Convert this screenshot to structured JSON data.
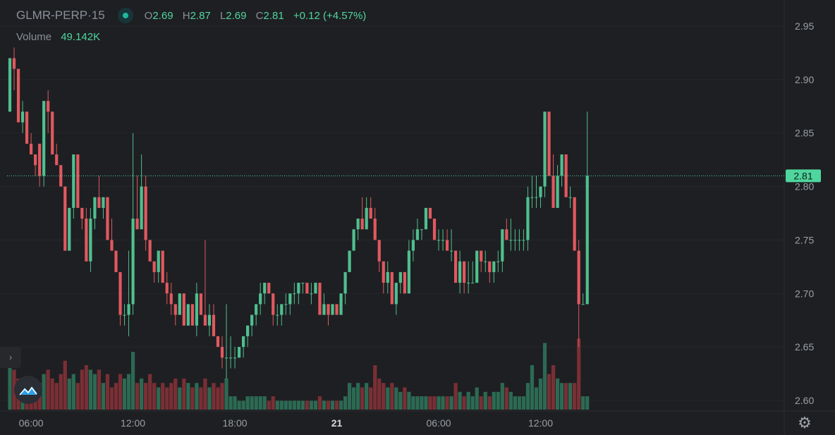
{
  "header": {
    "symbol": "GLMR-PERP",
    "separator": " · ",
    "interval": "15",
    "open_label": "O",
    "open": "2.69",
    "high_label": "H",
    "high": "2.87",
    "low_label": "L",
    "low": "2.69",
    "close_label": "C",
    "close": "2.81",
    "change": "+0.12 (+4.57%)",
    "volume_label": "Volume",
    "volume_value": "49.142K"
  },
  "colors": {
    "background": "#1e1f22",
    "up": "#4fbf8f",
    "down": "#e0595f",
    "vol_up": "#2c6a53",
    "vol_down": "#7a2f35",
    "axis_text": "#9aa0a6",
    "price_tag": "#4fd69e"
  },
  "icons": {
    "sidebar_toggle": "chevron-right-icon",
    "logo": "mountain-logo-icon",
    "settings": "gear-icon"
  },
  "sidebar_toggle_glyph": "›",
  "settings_glyph": "⚙",
  "chart_data": {
    "type": "candlestick",
    "interval_minutes": 15,
    "ylim": [
      2.59,
      2.965
    ],
    "y_ticks": [
      "2.95",
      "2.90",
      "2.85",
      "2.80",
      "2.75",
      "2.70",
      "2.65",
      "2.60"
    ],
    "x_ticks": [
      {
        "label": "06:00",
        "index": 5
      },
      {
        "label": "12:00",
        "index": 29
      },
      {
        "label": "18:00",
        "index": 53
      },
      {
        "label": "21",
        "index": 77
      },
      {
        "label": "06:00",
        "index": 101
      },
      {
        "label": "12:00",
        "index": 125
      }
    ],
    "last_price": "2.81",
    "candles": [
      [
        2.87,
        2.92,
        2.87,
        2.92,
        1.2
      ],
      [
        2.92,
        2.93,
        2.89,
        2.91,
        0.9
      ],
      [
        2.91,
        2.91,
        2.86,
        2.86,
        0.7
      ],
      [
        2.86,
        2.88,
        2.85,
        2.87,
        0.6
      ],
      [
        2.87,
        2.87,
        2.84,
        2.84,
        0.5
      ],
      [
        2.84,
        2.85,
        2.83,
        2.83,
        0.6
      ],
      [
        2.83,
        2.83,
        2.81,
        2.82,
        0.5
      ],
      [
        2.84,
        2.84,
        2.8,
        2.81,
        0.6
      ],
      [
        2.81,
        2.88,
        2.8,
        2.88,
        0.8
      ],
      [
        2.88,
        2.89,
        2.85,
        2.87,
        0.9
      ],
      [
        2.87,
        2.87,
        2.83,
        2.83,
        0.7
      ],
      [
        2.83,
        2.84,
        2.82,
        2.82,
        0.6
      ],
      [
        2.82,
        2.82,
        2.8,
        2.8,
        0.8
      ],
      [
        2.8,
        2.8,
        2.74,
        2.74,
        1.1
      ],
      [
        2.74,
        2.78,
        2.74,
        2.78,
        0.7
      ],
      [
        2.78,
        2.83,
        2.77,
        2.83,
        0.8
      ],
      [
        2.83,
        2.83,
        2.78,
        2.78,
        0.6
      ],
      [
        2.78,
        2.78,
        2.76,
        2.77,
        0.9
      ],
      [
        2.77,
        2.78,
        2.73,
        2.73,
        1.0
      ],
      [
        2.73,
        2.78,
        2.72,
        2.77,
        0.9
      ],
      [
        2.77,
        2.79,
        2.76,
        2.79,
        0.8
      ],
      [
        2.79,
        2.81,
        2.78,
        2.78,
        0.9
      ],
      [
        2.78,
        2.79,
        2.77,
        2.79,
        0.6
      ],
      [
        2.79,
        2.79,
        2.75,
        2.75,
        0.8
      ],
      [
        2.75,
        2.77,
        2.74,
        2.74,
        0.5
      ],
      [
        2.74,
        2.74,
        2.72,
        2.72,
        0.6
      ],
      [
        2.72,
        2.72,
        2.67,
        2.68,
        0.8
      ],
      [
        2.68,
        2.69,
        2.67,
        2.68,
        0.7
      ],
      [
        2.68,
        2.74,
        2.66,
        2.69,
        0.8
      ],
      [
        2.69,
        2.85,
        2.68,
        2.77,
        1.3
      ],
      [
        2.77,
        2.81,
        2.76,
        2.76,
        0.6
      ],
      [
        2.76,
        2.83,
        2.76,
        2.8,
        0.7
      ],
      [
        2.8,
        2.81,
        2.74,
        2.75,
        0.6
      ],
      [
        2.75,
        2.75,
        2.73,
        2.73,
        0.8
      ],
      [
        2.73,
        2.73,
        2.71,
        2.72,
        0.6
      ],
      [
        2.72,
        2.74,
        2.71,
        2.74,
        0.5
      ],
      [
        2.74,
        2.74,
        2.71,
        2.71,
        0.6
      ],
      [
        2.71,
        2.72,
        2.69,
        2.7,
        0.5
      ],
      [
        2.7,
        2.71,
        2.68,
        2.69,
        0.6
      ],
      [
        2.69,
        2.69,
        2.67,
        2.68,
        0.7
      ],
      [
        2.68,
        2.7,
        2.68,
        2.7,
        0.5
      ],
      [
        2.7,
        2.7,
        2.67,
        2.67,
        0.7
      ],
      [
        2.67,
        2.69,
        2.67,
        2.69,
        0.6
      ],
      [
        2.69,
        2.69,
        2.67,
        2.67,
        0.5
      ],
      [
        2.67,
        2.71,
        2.66,
        2.7,
        0.6
      ],
      [
        2.7,
        2.7,
        2.68,
        2.68,
        0.5
      ],
      [
        2.68,
        2.75,
        2.67,
        2.67,
        0.7
      ],
      [
        2.67,
        2.69,
        2.66,
        2.68,
        0.5
      ],
      [
        2.68,
        2.69,
        2.66,
        2.66,
        0.6
      ],
      [
        2.66,
        2.66,
        2.65,
        2.65,
        0.5
      ],
      [
        2.65,
        2.66,
        2.63,
        2.64,
        0.6
      ],
      [
        2.64,
        2.69,
        2.62,
        2.64,
        0.7
      ],
      [
        2.64,
        2.66,
        2.63,
        2.64,
        0.3
      ],
      [
        2.64,
        2.65,
        2.63,
        2.64,
        0.3
      ],
      [
        2.64,
        2.65,
        2.64,
        2.65,
        0.2
      ],
      [
        2.65,
        2.66,
        2.64,
        2.66,
        0.2
      ],
      [
        2.66,
        2.67,
        2.65,
        2.67,
        0.3
      ],
      [
        2.67,
        2.68,
        2.66,
        2.68,
        0.3
      ],
      [
        2.68,
        2.69,
        2.67,
        2.69,
        0.3
      ],
      [
        2.69,
        2.71,
        2.68,
        2.7,
        0.3
      ],
      [
        2.7,
        2.71,
        2.69,
        2.71,
        0.3
      ],
      [
        2.71,
        2.71,
        2.7,
        2.7,
        0.2
      ],
      [
        2.7,
        2.7,
        2.67,
        2.68,
        0.3
      ],
      [
        2.68,
        2.69,
        2.67,
        2.68,
        0.2
      ],
      [
        2.68,
        2.69,
        2.67,
        2.69,
        0.2
      ],
      [
        2.69,
        2.7,
        2.68,
        2.69,
        0.2
      ],
      [
        2.69,
        2.7,
        2.68,
        2.7,
        0.2
      ],
      [
        2.7,
        2.71,
        2.69,
        2.7,
        0.2
      ],
      [
        2.7,
        2.71,
        2.69,
        2.71,
        0.2
      ],
      [
        2.71,
        2.71,
        2.7,
        2.71,
        0.2
      ],
      [
        2.71,
        2.71,
        2.7,
        2.7,
        0.2
      ],
      [
        2.7,
        2.71,
        2.69,
        2.7,
        0.2
      ],
      [
        2.7,
        2.71,
        2.7,
        2.71,
        0.2
      ],
      [
        2.71,
        2.71,
        2.68,
        2.68,
        0.3
      ],
      [
        2.68,
        2.7,
        2.68,
        2.69,
        0.2
      ],
      [
        2.69,
        2.69,
        2.67,
        2.68,
        0.2
      ],
      [
        2.68,
        2.69,
        2.68,
        2.69,
        0.2
      ],
      [
        2.69,
        2.69,
        2.68,
        2.68,
        0.2
      ],
      [
        2.68,
        2.7,
        2.68,
        2.7,
        0.2
      ],
      [
        2.7,
        2.72,
        2.69,
        2.72,
        0.3
      ],
      [
        2.72,
        2.74,
        2.72,
        2.74,
        0.6
      ],
      [
        2.74,
        2.76,
        2.74,
        2.76,
        0.5
      ],
      [
        2.76,
        2.77,
        2.75,
        2.77,
        0.6
      ],
      [
        2.77,
        2.79,
        2.76,
        2.76,
        0.5
      ],
      [
        2.76,
        2.79,
        2.76,
        2.78,
        0.6
      ],
      [
        2.78,
        2.79,
        2.77,
        2.77,
        0.5
      ],
      [
        2.77,
        2.78,
        2.75,
        2.75,
        1.0
      ],
      [
        2.75,
        2.75,
        2.72,
        2.73,
        0.7
      ],
      [
        2.73,
        2.73,
        2.7,
        2.71,
        0.6
      ],
      [
        2.71,
        2.73,
        2.7,
        2.72,
        0.5
      ],
      [
        2.72,
        2.72,
        2.69,
        2.69,
        0.6
      ],
      [
        2.69,
        2.71,
        2.68,
        2.71,
        0.5
      ],
      [
        2.71,
        2.72,
        2.7,
        2.72,
        0.4
      ],
      [
        2.72,
        2.72,
        2.7,
        2.7,
        0.5
      ],
      [
        2.7,
        2.75,
        2.7,
        2.74,
        0.4
      ],
      [
        2.74,
        2.76,
        2.73,
        2.75,
        0.3
      ],
      [
        2.75,
        2.77,
        2.75,
        2.76,
        0.3
      ],
      [
        2.76,
        2.76,
        2.75,
        2.76,
        0.3
      ],
      [
        2.76,
        2.78,
        2.76,
        2.78,
        0.3
      ],
      [
        2.78,
        2.78,
        2.77,
        2.77,
        0.3
      ],
      [
        2.77,
        2.77,
        2.75,
        2.75,
        0.3
      ],
      [
        2.75,
        2.76,
        2.74,
        2.75,
        0.3
      ],
      [
        2.75,
        2.76,
        2.74,
        2.75,
        0.3
      ],
      [
        2.75,
        2.76,
        2.74,
        2.74,
        0.3
      ],
      [
        2.74,
        2.76,
        2.73,
        2.74,
        0.3
      ],
      [
        2.74,
        2.74,
        2.71,
        2.71,
        0.6
      ],
      [
        2.71,
        2.74,
        2.7,
        2.73,
        0.4
      ],
      [
        2.73,
        2.73,
        2.7,
        2.71,
        0.3
      ],
      [
        2.71,
        2.73,
        2.7,
        2.71,
        0.4
      ],
      [
        2.71,
        2.73,
        2.71,
        2.71,
        0.3
      ],
      [
        2.71,
        2.74,
        2.71,
        2.74,
        0.5
      ],
      [
        2.74,
        2.74,
        2.72,
        2.73,
        0.3
      ],
      [
        2.73,
        2.74,
        2.72,
        2.73,
        0.4
      ],
      [
        2.73,
        2.73,
        2.71,
        2.72,
        0.3
      ],
      [
        2.72,
        2.73,
        2.71,
        2.73,
        0.4
      ],
      [
        2.73,
        2.74,
        2.72,
        2.73,
        0.4
      ],
      [
        2.73,
        2.76,
        2.72,
        2.76,
        0.6
      ],
      [
        2.76,
        2.77,
        2.75,
        2.75,
        0.5
      ],
      [
        2.75,
        2.77,
        2.74,
        2.75,
        0.4
      ],
      [
        2.75,
        2.76,
        2.74,
        2.75,
        0.3
      ],
      [
        2.75,
        2.76,
        2.74,
        2.75,
        0.3
      ],
      [
        2.75,
        2.76,
        2.74,
        2.75,
        0.3
      ],
      [
        2.75,
        2.8,
        2.74,
        2.79,
        0.6
      ],
      [
        2.79,
        2.81,
        2.78,
        2.79,
        1.0
      ],
      [
        2.79,
        2.81,
        2.78,
        2.79,
        0.5
      ],
      [
        2.79,
        2.8,
        2.78,
        2.8,
        0.7
      ],
      [
        2.8,
        2.87,
        2.79,
        2.87,
        1.5
      ],
      [
        2.87,
        2.87,
        2.81,
        2.81,
        0.8
      ],
      [
        2.81,
        2.83,
        2.78,
        2.78,
        1.0
      ],
      [
        2.78,
        2.82,
        2.78,
        2.81,
        0.7
      ],
      [
        2.81,
        2.83,
        2.8,
        2.83,
        0.6
      ],
      [
        2.83,
        2.83,
        2.79,
        2.79,
        0.6
      ],
      [
        2.79,
        2.8,
        2.78,
        2.79,
        0.6
      ],
      [
        2.79,
        2.79,
        2.74,
        2.74,
        0.6
      ],
      [
        2.74,
        2.75,
        2.65,
        2.69,
        1.6
      ],
      [
        2.69,
        2.7,
        2.69,
        2.69,
        0.3
      ],
      [
        2.69,
        2.87,
        2.69,
        2.81,
        0.3
      ]
    ]
  }
}
